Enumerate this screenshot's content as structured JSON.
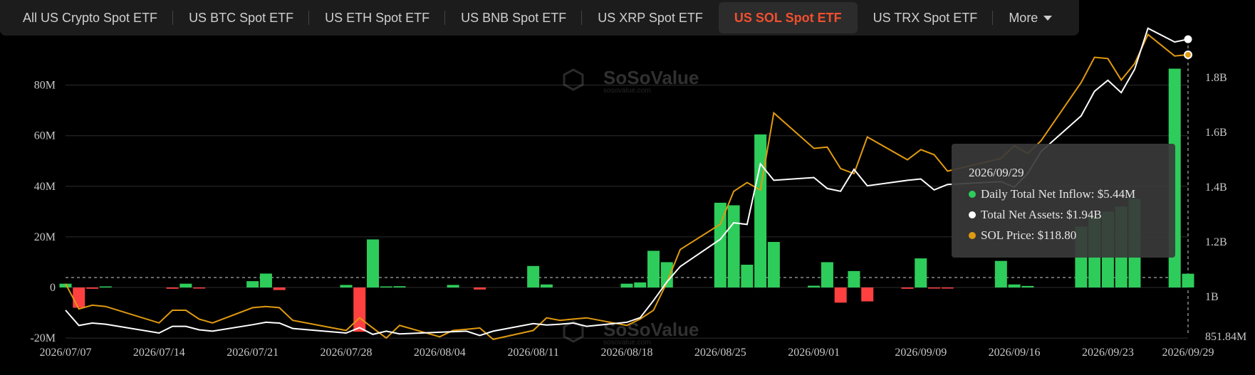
{
  "tabs": [
    {
      "label": "All US Crypto Spot ETF",
      "active": false
    },
    {
      "label": "US BTC Spot ETF",
      "active": false
    },
    {
      "label": "US ETH Spot ETF",
      "active": false
    },
    {
      "label": "US BNB Spot ETF",
      "active": false
    },
    {
      "label": "US XRP Spot ETF",
      "active": false
    },
    {
      "label": "US SOL Spot ETF",
      "active": true
    },
    {
      "label": "US TRX Spot ETF",
      "active": false
    },
    {
      "label": "More",
      "active": false
    }
  ],
  "watermark": {
    "brand": "SoSoValue",
    "url": "sosovalue.com"
  },
  "tooltip": {
    "date": "2026/09/29",
    "inflow": "Daily Total Net Inflow: $5.44M",
    "assets": "Total Net Assets: $1.94B",
    "price": "SOL Price: $118.80"
  },
  "colors": {
    "inflow_pos": "#2ecc5a",
    "inflow_neg": "#ff4040",
    "assets": "#ffffff",
    "price": "#e09a10",
    "accent": "#f04f2f"
  },
  "chart_data": {
    "type": "bar+line",
    "left_axis": {
      "ticks": [
        "-20M",
        "0",
        "20M",
        "40M",
        "60M",
        "80M"
      ],
      "tick_values": [
        -20,
        0,
        20,
        40,
        60,
        80
      ],
      "range": [
        -20,
        100
      ]
    },
    "right_axis": {
      "ticks": [
        "851.84M",
        "1B",
        "1.2B",
        "1.4B",
        "1.6B",
        "1.8B"
      ],
      "tick_values": [
        0.85184,
        1.0,
        1.2,
        1.4,
        1.6,
        1.8
      ],
      "range": [
        0.85184,
        2.0
      ]
    },
    "x_ticks": [
      "2026/07/07",
      "2026/07/14",
      "2026/07/21",
      "2026/07/28",
      "2026/08/04",
      "2026/08/11",
      "2026/08/18",
      "2026/08/25",
      "2026/09/01",
      "2026/09/09",
      "2026/09/16",
      "2026/09/23",
      "2026/09/29"
    ],
    "series": [
      {
        "name": "Daily Total Net Inflow",
        "kind": "bar",
        "points": [
          [
            "2026/07/07",
            1.5
          ],
          [
            "2026/07/08",
            -8
          ],
          [
            "2026/07/09",
            -0.5
          ],
          [
            "2026/07/10",
            0.3
          ],
          [
            "2026/07/15",
            -0.5
          ],
          [
            "2026/07/16",
            1.5
          ],
          [
            "2026/07/17",
            -0.3
          ],
          [
            "2026/07/21",
            2.5
          ],
          [
            "2026/07/22",
            5.5
          ],
          [
            "2026/07/23",
            -1
          ],
          [
            "2026/07/28",
            1
          ],
          [
            "2026/07/29",
            -17.5
          ],
          [
            "2026/07/30",
            19
          ],
          [
            "2026/07/31",
            0.4
          ],
          [
            "2026/08/01",
            0.5
          ],
          [
            "2026/08/05",
            1
          ],
          [
            "2026/08/07",
            -0.8
          ],
          [
            "2026/08/11",
            8.5
          ],
          [
            "2026/08/12",
            1.2
          ],
          [
            "2026/08/18",
            1.5
          ],
          [
            "2026/08/19",
            2
          ],
          [
            "2026/08/20",
            14.5
          ],
          [
            "2026/08/21",
            10
          ],
          [
            "2026/08/25",
            33.5
          ],
          [
            "2026/08/26",
            32.5
          ],
          [
            "2026/08/27",
            9
          ],
          [
            "2026/08/28",
            60.5
          ],
          [
            "2026/08/29",
            18
          ],
          [
            "2026/09/01",
            0.7
          ],
          [
            "2026/09/02",
            10
          ],
          [
            "2026/09/03",
            -6
          ],
          [
            "2026/09/04",
            6.5
          ],
          [
            "2026/09/05",
            -5.5
          ],
          [
            "2026/09/08",
            -0.5
          ],
          [
            "2026/09/09",
            11.5
          ],
          [
            "2026/09/10",
            -0.3
          ],
          [
            "2026/09/11",
            -0.3
          ],
          [
            "2026/09/15",
            10.5
          ],
          [
            "2026/09/16",
            1.2
          ],
          [
            "2026/09/17",
            0.6
          ],
          [
            "2026/09/21",
            24
          ],
          [
            "2026/09/22",
            28
          ],
          [
            "2026/09/23",
            30
          ],
          [
            "2026/09/24",
            32
          ],
          [
            "2026/09/25",
            35
          ],
          [
            "2026/09/28",
            86.5
          ],
          [
            "2026/09/29",
            5.44
          ]
        ]
      },
      {
        "name": "Total Net Assets",
        "kind": "line",
        "axis": "right",
        "points": [
          [
            "2026/07/07",
            0.95
          ],
          [
            "2026/07/08",
            0.893
          ],
          [
            "2026/07/09",
            0.902
          ],
          [
            "2026/07/10",
            0.898
          ],
          [
            "2026/07/14",
            0.865
          ],
          [
            "2026/07/15",
            0.89
          ],
          [
            "2026/07/16",
            0.89
          ],
          [
            "2026/07/17",
            0.877
          ],
          [
            "2026/07/18",
            0.872
          ],
          [
            "2026/07/21",
            0.896
          ],
          [
            "2026/07/22",
            0.905
          ],
          [
            "2026/07/23",
            0.902
          ],
          [
            "2026/07/24",
            0.882
          ],
          [
            "2026/07/28",
            0.865
          ],
          [
            "2026/07/29",
            0.885
          ],
          [
            "2026/07/30",
            0.86
          ],
          [
            "2026/07/31",
            0.872
          ],
          [
            "2026/08/01",
            0.862
          ],
          [
            "2026/08/04",
            0.868
          ],
          [
            "2026/08/05",
            0.87
          ],
          [
            "2026/08/06",
            0.872
          ],
          [
            "2026/08/07",
            0.856
          ],
          [
            "2026/08/08",
            0.872
          ],
          [
            "2026/08/11",
            0.9
          ],
          [
            "2026/08/12",
            0.895
          ],
          [
            "2026/08/13",
            0.898
          ],
          [
            "2026/08/14",
            0.902
          ],
          [
            "2026/08/15",
            0.89
          ],
          [
            "2026/08/18",
            0.905
          ],
          [
            "2026/08/19",
            0.922
          ],
          [
            "2026/08/20",
            0.986
          ],
          [
            "2026/08/21",
            1.054
          ],
          [
            "2026/08/22",
            1.11
          ],
          [
            "2026/08/25",
            1.21
          ],
          [
            "2026/08/26",
            1.27
          ],
          [
            "2026/08/27",
            1.264
          ],
          [
            "2026/08/28",
            1.485
          ],
          [
            "2026/08/29",
            1.425
          ],
          [
            "2026/09/01",
            1.435
          ],
          [
            "2026/09/02",
            1.395
          ],
          [
            "2026/09/03",
            1.385
          ],
          [
            "2026/09/04",
            1.465
          ],
          [
            "2026/09/05",
            1.405
          ],
          [
            "2026/09/08",
            1.425
          ],
          [
            "2026/09/09",
            1.43
          ],
          [
            "2026/09/10",
            1.39
          ],
          [
            "2026/09/11",
            1.41
          ],
          [
            "2026/09/15",
            1.42
          ],
          [
            "2026/09/16",
            1.4
          ],
          [
            "2026/09/17",
            1.45
          ],
          [
            "2026/09/18",
            1.53
          ],
          [
            "2026/09/21",
            1.66
          ],
          [
            "2026/09/22",
            1.75
          ],
          [
            "2026/09/23",
            1.79
          ],
          [
            "2026/09/24",
            1.745
          ],
          [
            "2026/09/25",
            1.83
          ],
          [
            "2026/09/26",
            1.98
          ],
          [
            "2026/09/28",
            1.93
          ],
          [
            "2026/09/29",
            1.94
          ]
        ]
      },
      {
        "name": "SOL Price",
        "kind": "line",
        "points": [
          [
            "2026/07/07",
            1.5
          ],
          [
            "2026/07/08",
            -8.5
          ],
          [
            "2026/07/09",
            -7
          ],
          [
            "2026/07/10",
            -7.5
          ],
          [
            "2026/07/14",
            -14
          ],
          [
            "2026/07/15",
            -9
          ],
          [
            "2026/07/16",
            -9
          ],
          [
            "2026/07/17",
            -12.5
          ],
          [
            "2026/07/18",
            -14
          ],
          [
            "2026/07/21",
            -8
          ],
          [
            "2026/07/22",
            -7.5
          ],
          [
            "2026/07/23",
            -8
          ],
          [
            "2026/07/24",
            -13
          ],
          [
            "2026/07/28",
            -17
          ],
          [
            "2026/07/29",
            -12
          ],
          [
            "2026/07/30",
            -16
          ],
          [
            "2026/07/31",
            -20
          ],
          [
            "2026/08/01",
            -15
          ],
          [
            "2026/08/04",
            -19.5
          ],
          [
            "2026/08/05",
            -17
          ],
          [
            "2026/08/06",
            -16.5
          ],
          [
            "2026/08/07",
            -16
          ],
          [
            "2026/08/08",
            -20.5
          ],
          [
            "2026/08/11",
            -17
          ],
          [
            "2026/08/12",
            -12
          ],
          [
            "2026/08/13",
            -13
          ],
          [
            "2026/08/14",
            -12.5
          ],
          [
            "2026/08/15",
            -12
          ],
          [
            "2026/08/18",
            -15
          ],
          [
            "2026/08/19",
            -12.5
          ],
          [
            "2026/08/20",
            -9
          ],
          [
            "2026/08/21",
            2
          ],
          [
            "2026/08/22",
            15
          ],
          [
            "2026/08/25",
            25
          ],
          [
            "2026/08/26",
            38
          ],
          [
            "2026/08/27",
            41.5
          ],
          [
            "2026/08/28",
            38.5
          ],
          [
            "2026/08/29",
            69
          ],
          [
            "2026/09/01",
            55
          ],
          [
            "2026/09/02",
            55.5
          ],
          [
            "2026/09/03",
            47
          ],
          [
            "2026/09/04",
            45
          ],
          [
            "2026/09/05",
            59.5
          ],
          [
            "2026/09/08",
            50.5
          ],
          [
            "2026/09/09",
            54.5
          ],
          [
            "2026/09/10",
            52.5
          ],
          [
            "2026/09/11",
            46
          ],
          [
            "2026/09/15",
            51
          ],
          [
            "2026/09/16",
            56
          ],
          [
            "2026/09/17",
            53
          ],
          [
            "2026/09/18",
            58
          ],
          [
            "2026/09/21",
            81
          ],
          [
            "2026/09/22",
            91
          ],
          [
            "2026/09/23",
            90.5
          ],
          [
            "2026/09/24",
            82
          ],
          [
            "2026/09/25",
            88.5
          ],
          [
            "2026/09/26",
            100
          ],
          [
            "2026/09/28",
            91.5
          ],
          [
            "2026/09/29",
            92
          ]
        ]
      }
    ]
  }
}
